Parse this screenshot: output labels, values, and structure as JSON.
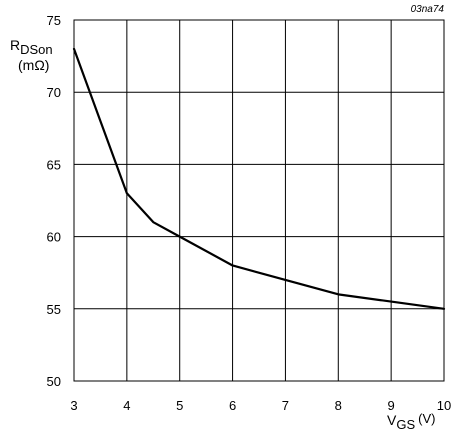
{
  "figure_code": "03na74",
  "chart_data": {
    "type": "line",
    "title": "",
    "xlabel": {
      "main": "V",
      "sub": "GS",
      "unit": "(V)"
    },
    "ylabel": {
      "main": "R",
      "sub": "DSon",
      "unit": "(mΩ)"
    },
    "xlim": [
      3,
      10
    ],
    "ylim": [
      50,
      75
    ],
    "grid": true,
    "x_ticks": [
      3,
      4,
      5,
      6,
      7,
      8,
      9,
      10
    ],
    "y_ticks": [
      50,
      55,
      60,
      65,
      70,
      75
    ],
    "series": [
      {
        "x": [
          3,
          3.5,
          4,
          4.5,
          5,
          6,
          7,
          8,
          9,
          10
        ],
        "y": [
          73,
          68,
          63,
          61,
          60,
          58,
          57,
          56,
          55.5,
          55
        ],
        "color": "#000000"
      }
    ]
  }
}
